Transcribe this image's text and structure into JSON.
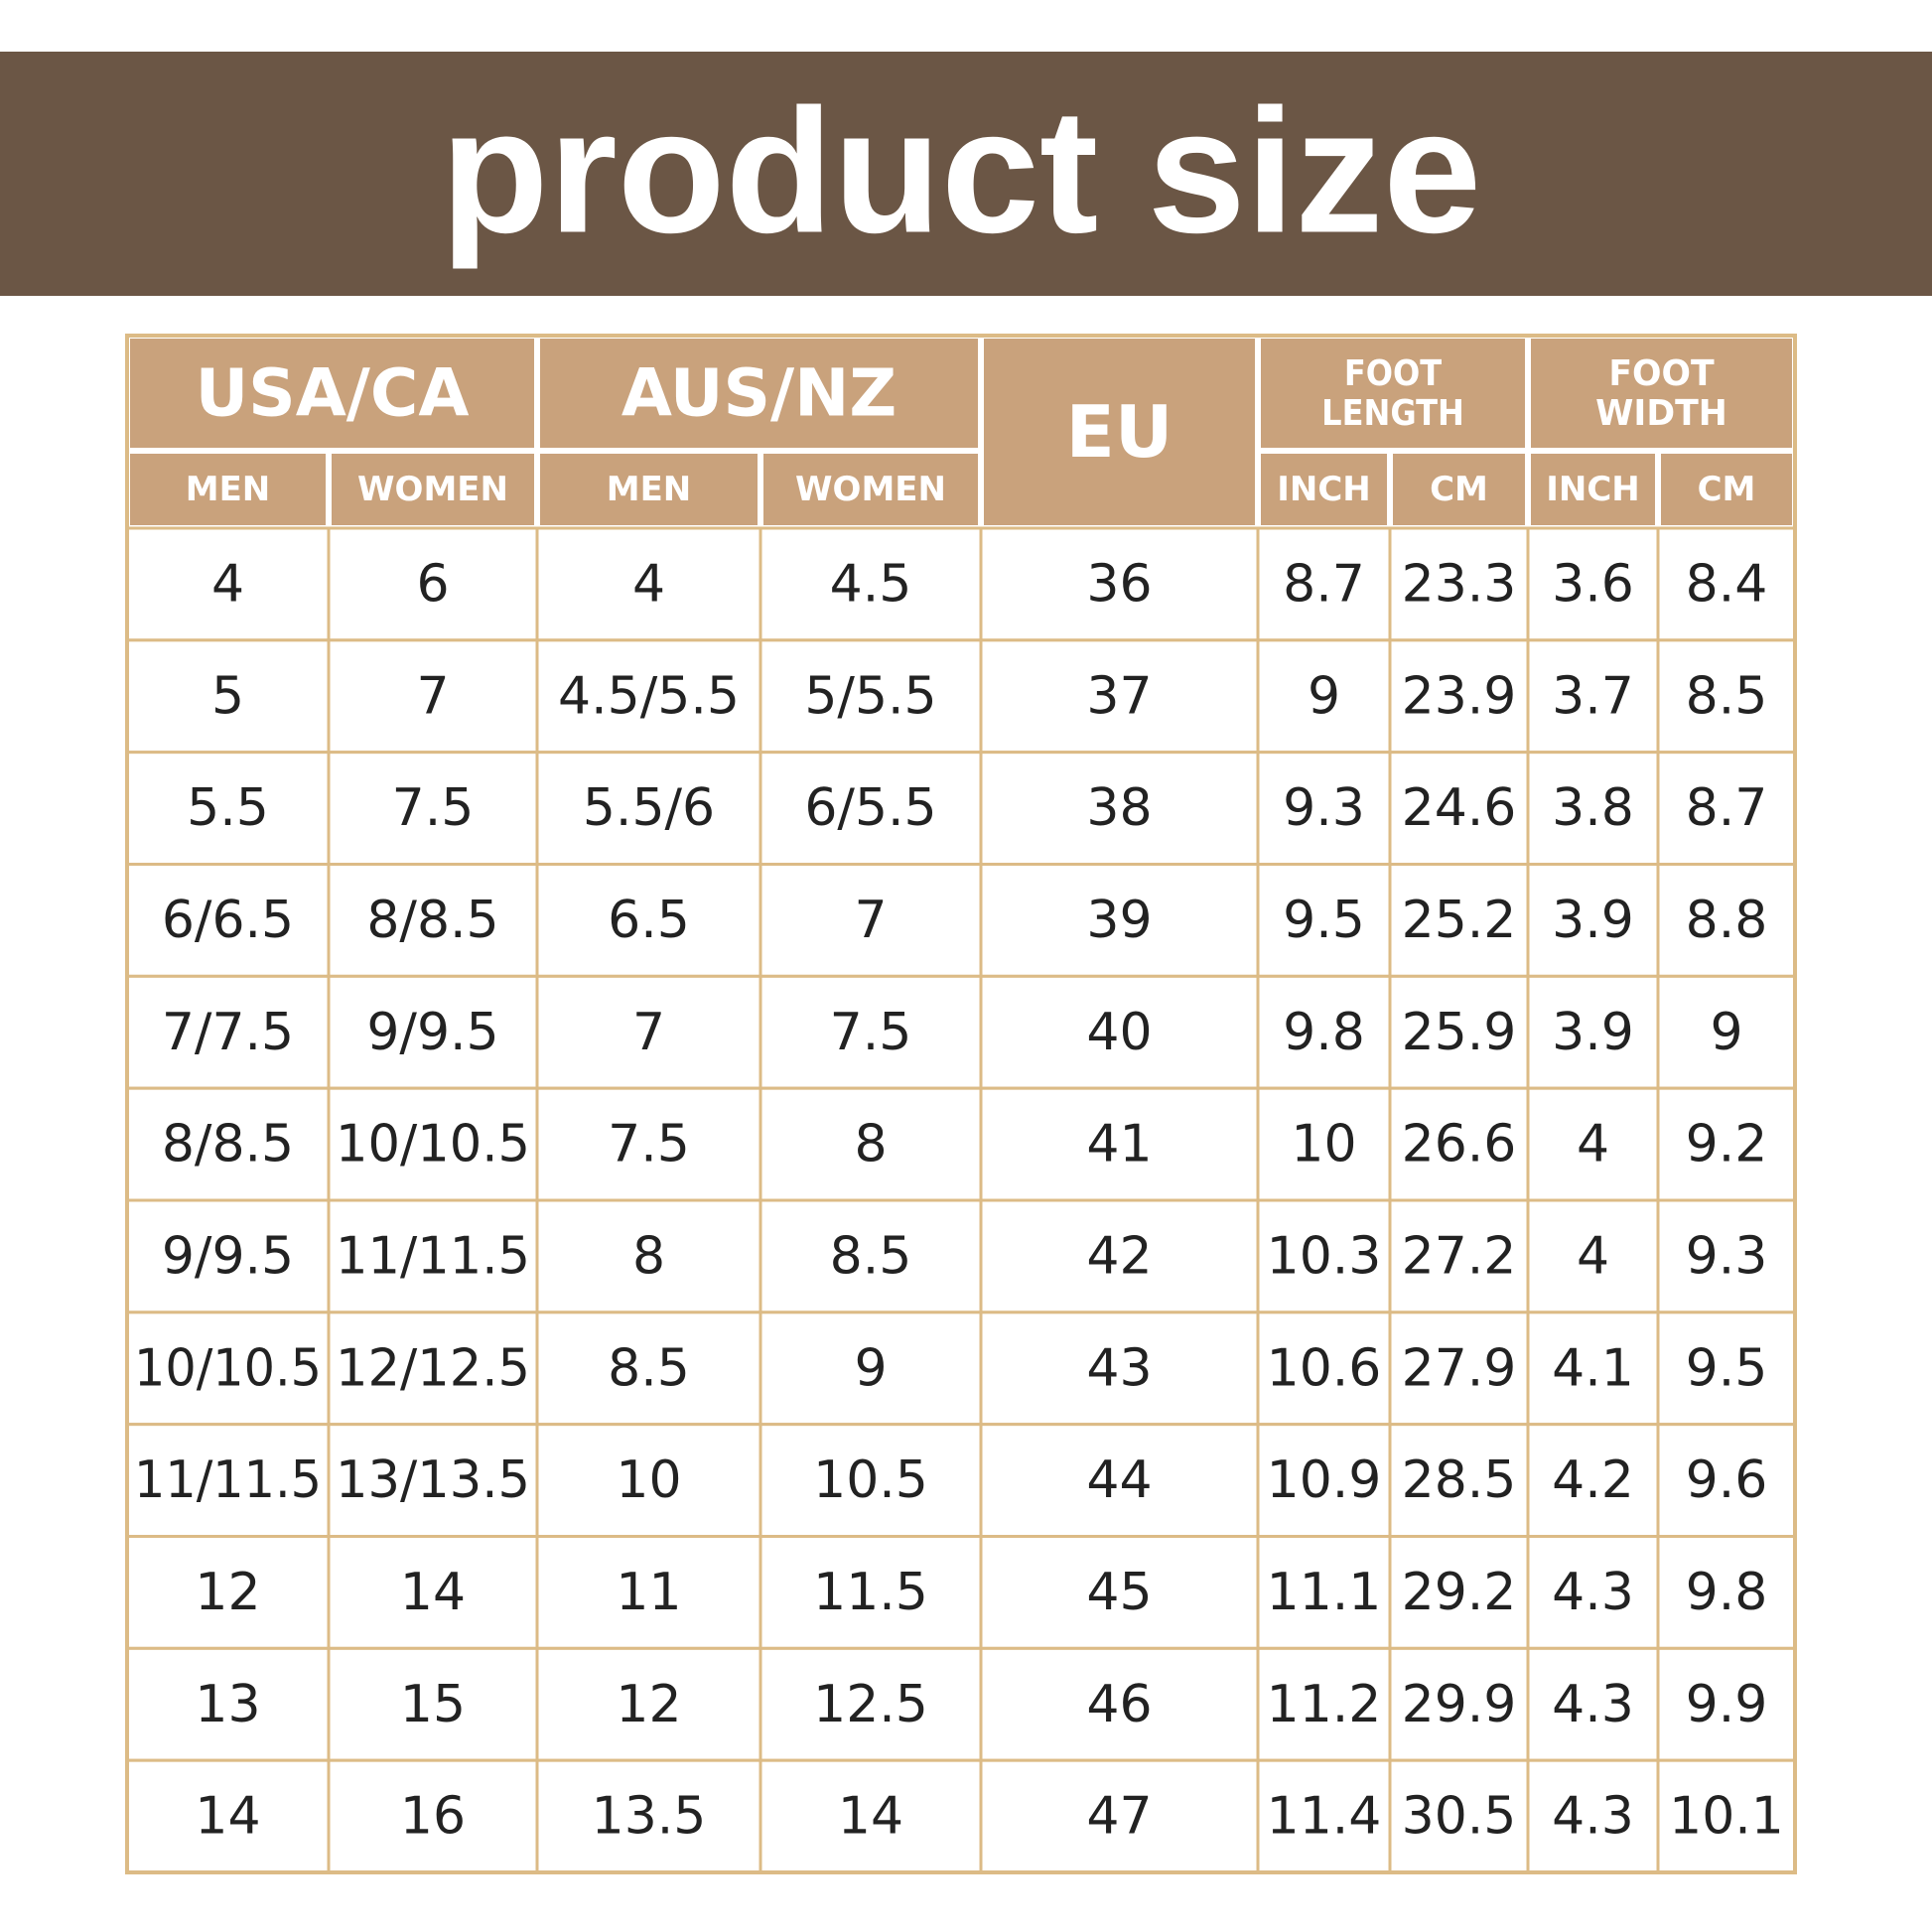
{
  "header": {
    "title": "product size"
  },
  "table": {
    "groups": [
      "USA/CA",
      "AUS/NZ",
      "EU",
      "FOOT LENGTH",
      "FOOT WIDTH"
    ],
    "subheaders": [
      "MEN",
      "WOMEN",
      "MEN",
      "WOMEN",
      "INCH",
      "CM",
      "INCH",
      "CM"
    ],
    "rows": [
      [
        "4",
        "6",
        "4",
        "4.5",
        "36",
        "8.7",
        "23.3",
        "3.6",
        "8.4"
      ],
      [
        "5",
        "7",
        "4.5/5.5",
        "5/5.5",
        "37",
        "9",
        "23.9",
        "3.7",
        "8.5"
      ],
      [
        "5.5",
        "7.5",
        "5.5/6",
        "6/5.5",
        "38",
        "9.3",
        "24.6",
        "3.8",
        "8.7"
      ],
      [
        "6/6.5",
        "8/8.5",
        "6.5",
        "7",
        "39",
        "9.5",
        "25.2",
        "3.9",
        "8.8"
      ],
      [
        "7/7.5",
        "9/9.5",
        "7",
        "7.5",
        "40",
        "9.8",
        "25.9",
        "3.9",
        "9"
      ],
      [
        "8/8.5",
        "10/10.5",
        "7.5",
        "8",
        "41",
        "10",
        "26.6",
        "4",
        "9.2"
      ],
      [
        "9/9.5",
        "11/11.5",
        "8",
        "8.5",
        "42",
        "10.3",
        "27.2",
        "4",
        "9.3"
      ],
      [
        "10/10.5",
        "12/12.5",
        "8.5",
        "9",
        "43",
        "10.6",
        "27.9",
        "4.1",
        "9.5"
      ],
      [
        "11/11.5",
        "13/13.5",
        "10",
        "10.5",
        "44",
        "10.9",
        "28.5",
        "4.2",
        "9.6"
      ],
      [
        "12",
        "14",
        "11",
        "11.5",
        "45",
        "11.1",
        "29.2",
        "4.3",
        "9.8"
      ],
      [
        "13",
        "15",
        "12",
        "12.5",
        "46",
        "11.2",
        "29.9",
        "4.3",
        "9.9"
      ],
      [
        "14",
        "16",
        "13.5",
        "14",
        "47",
        "11.4",
        "30.5",
        "4.3",
        "10.1"
      ]
    ]
  }
}
